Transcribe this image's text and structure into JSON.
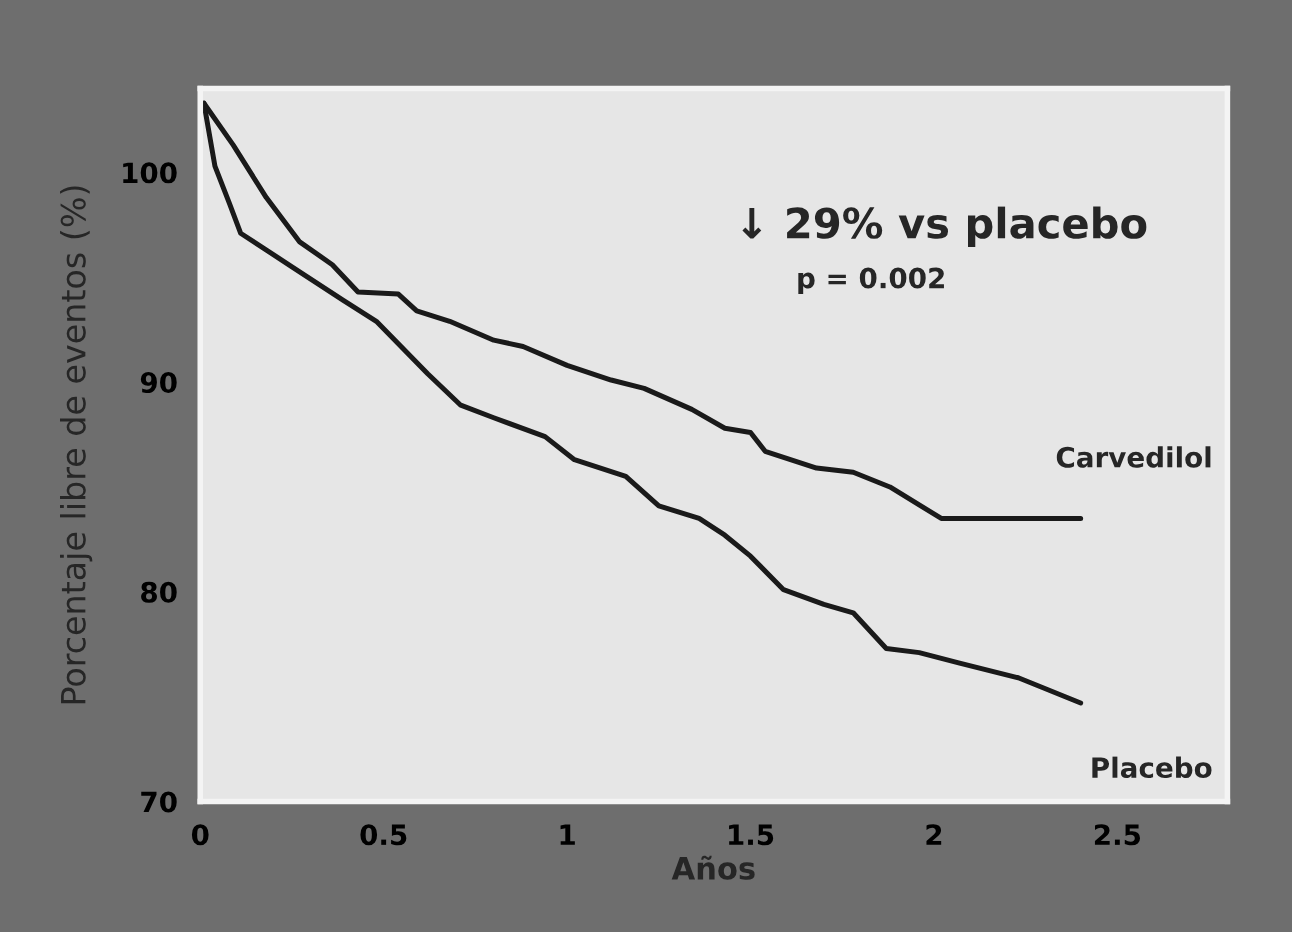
{
  "chart_data": {
    "type": "line",
    "xlabel": "Años",
    "ylabel": "Porcentaje libre de eventos (%)",
    "xlim": [
      0,
      2.8
    ],
    "ylim": [
      70,
      104
    ],
    "xticks": [
      0,
      0.5,
      1,
      1.5,
      2,
      2.5
    ],
    "yticks": [
      70,
      80,
      90,
      100
    ],
    "grid": false,
    "legend": false,
    "marker": "none",
    "line_style": "solid",
    "annotations": [
      "↓ 29% vs placebo",
      "p = 0.002"
    ],
    "series": [
      {
        "name": "Carvedilol",
        "color": "#1a1a1a",
        "x": [
          0.01,
          0.09,
          0.18,
          0.27,
          0.36,
          0.43,
          0.54,
          0.59,
          0.68,
          0.8,
          0.88,
          1.0,
          1.12,
          1.21,
          1.34,
          1.43,
          1.5,
          1.54,
          1.68,
          1.78,
          1.88,
          2.02,
          2.4
        ],
        "values": [
          103.3,
          101.3,
          98.8,
          96.7,
          95.6,
          94.3,
          94.2,
          93.4,
          92.9,
          92.0,
          91.7,
          90.8,
          90.1,
          89.7,
          88.7,
          87.8,
          87.6,
          86.7,
          85.9,
          85.7,
          85.0,
          83.5,
          83.5
        ]
      },
      {
        "name": "Placebo",
        "color": "#1a1a1a",
        "x": [
          0.01,
          0.04,
          0.08,
          0.11,
          0.25,
          0.39,
          0.48,
          0.62,
          0.71,
          0.8,
          0.94,
          1.02,
          1.16,
          1.25,
          1.36,
          1.43,
          1.5,
          1.59,
          1.7,
          1.78,
          1.87,
          1.96,
          2.07,
          2.23,
          2.4
        ],
        "values": [
          103.3,
          100.3,
          98.5,
          97.1,
          95.5,
          93.9,
          92.9,
          90.4,
          88.9,
          88.3,
          87.4,
          86.3,
          85.5,
          84.1,
          83.5,
          82.7,
          81.7,
          80.1,
          79.4,
          79.0,
          77.3,
          77.1,
          76.6,
          75.9,
          74.7
        ]
      }
    ]
  }
}
